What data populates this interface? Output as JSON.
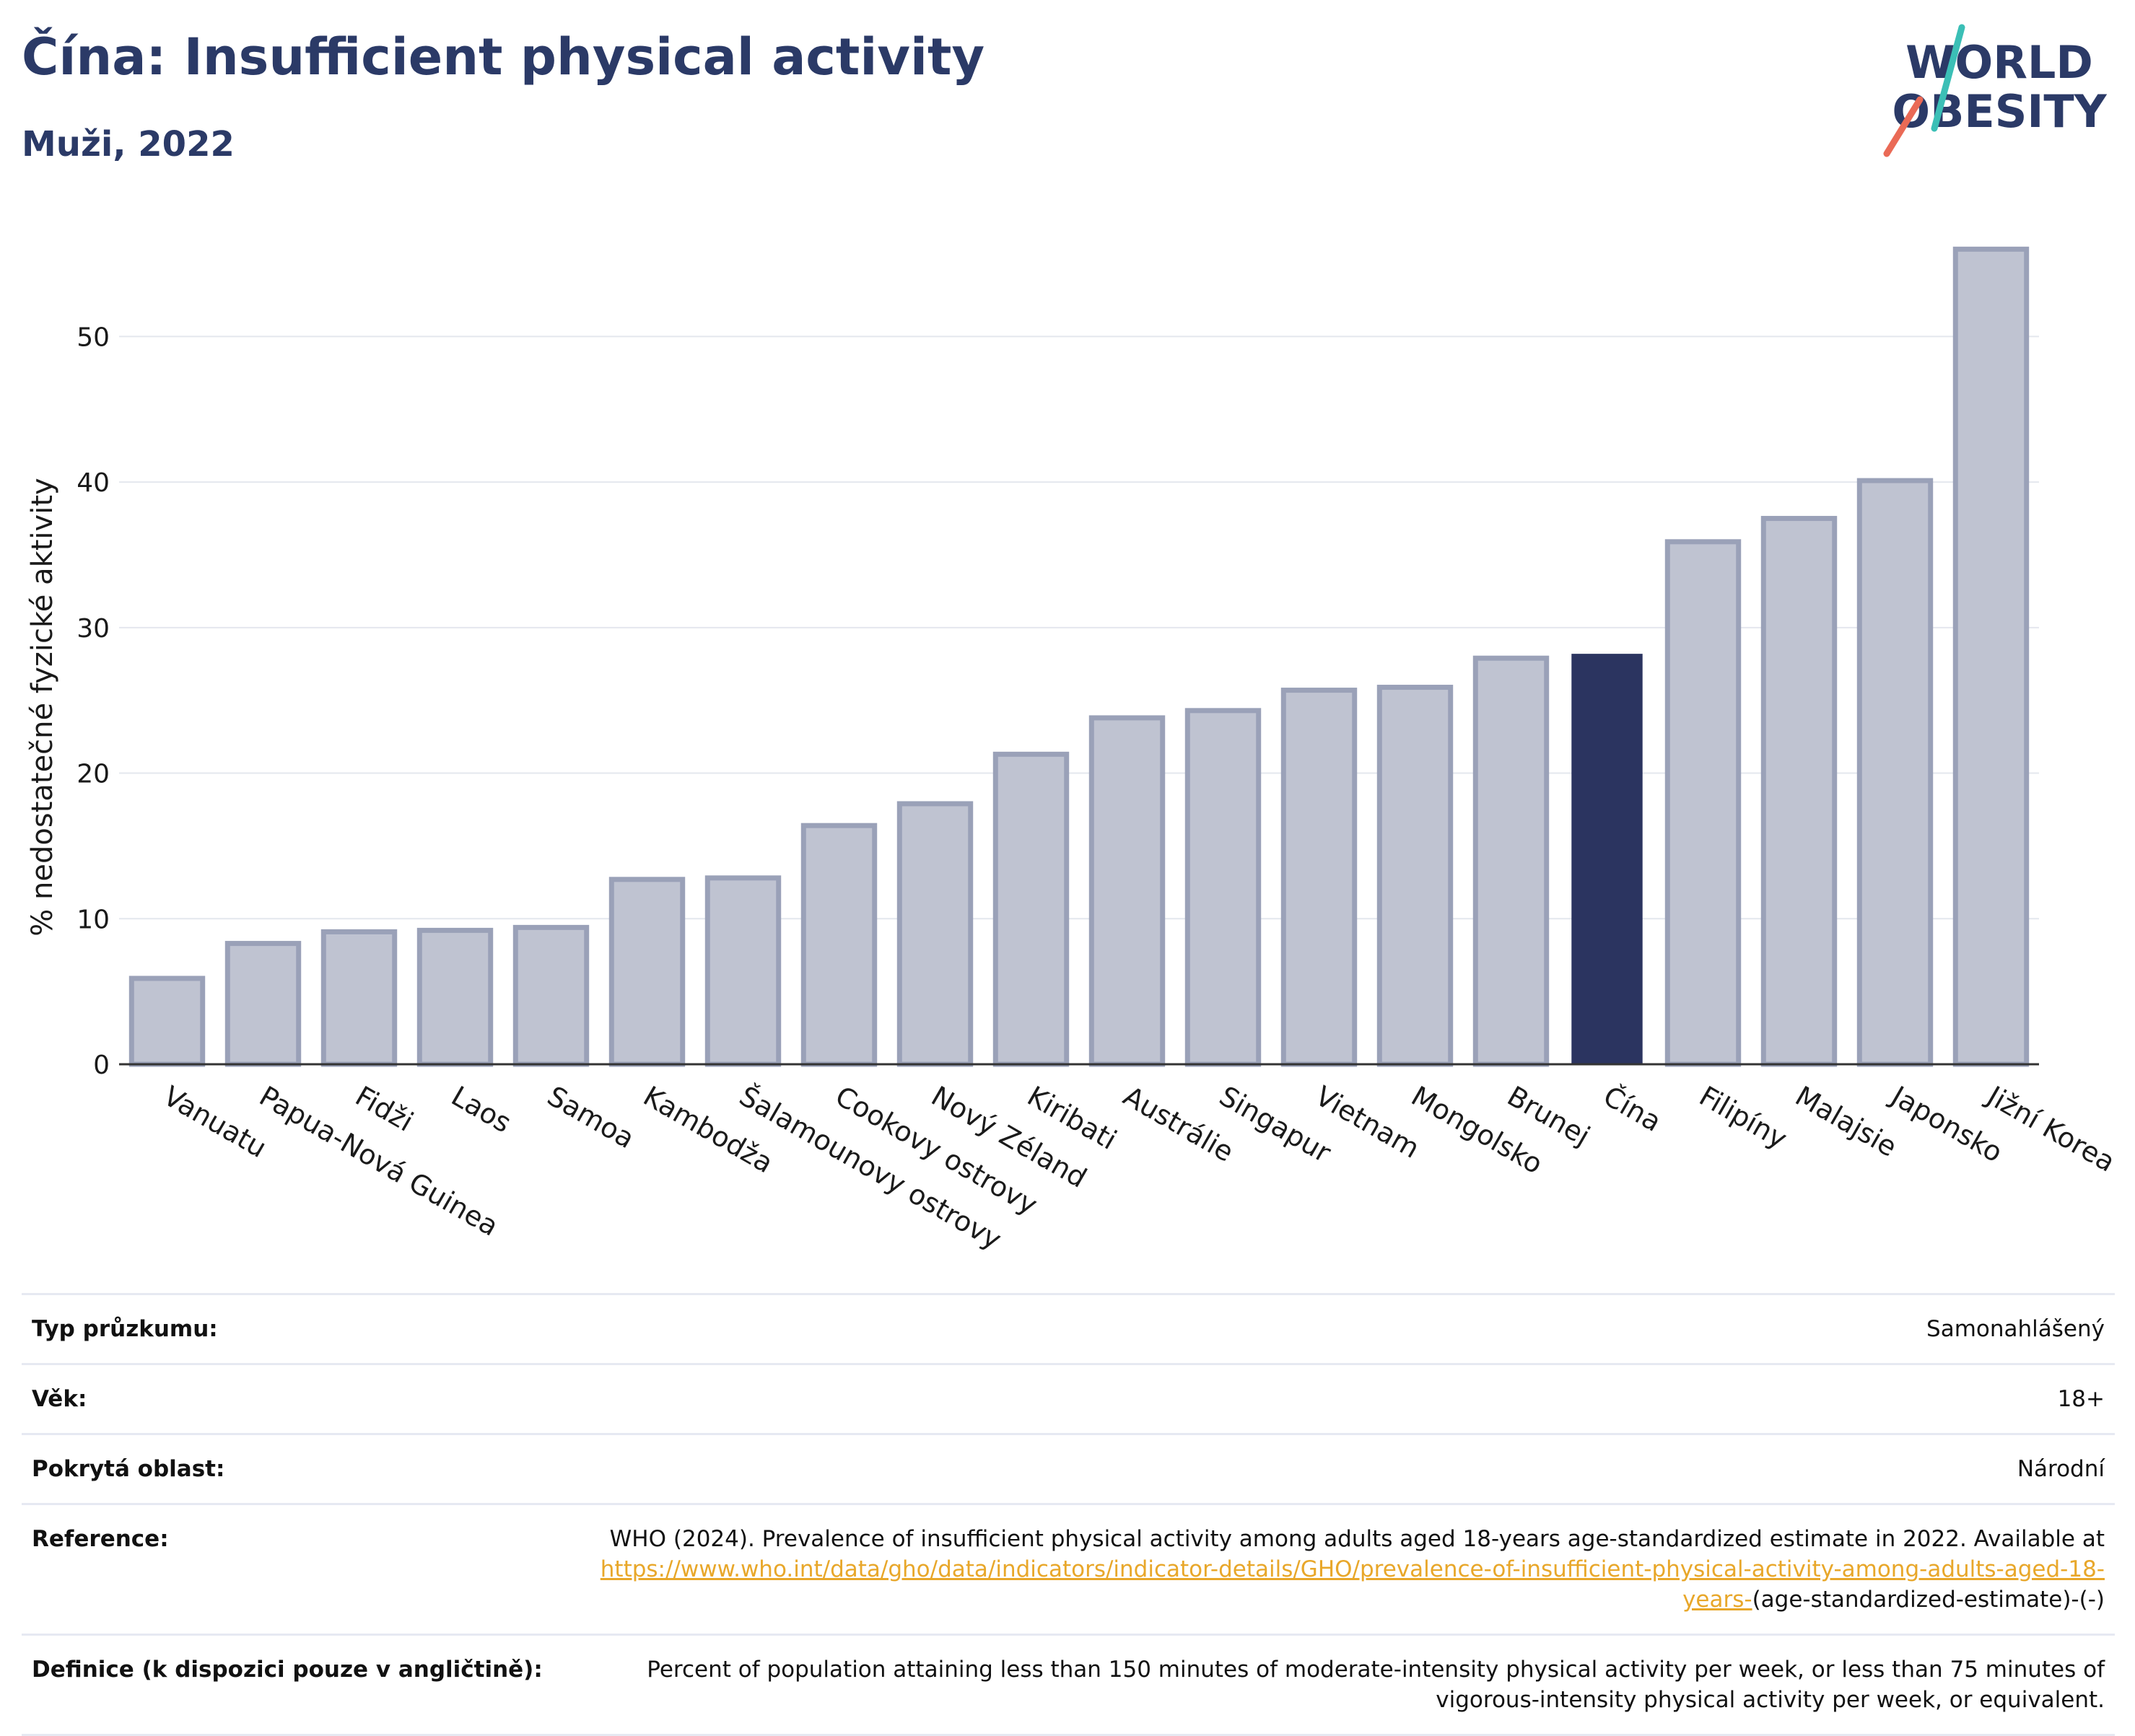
{
  "header": {
    "title": "Čína: Insufficient physical activity",
    "subtitle": "Muži, 2022"
  },
  "logo": {
    "line1": "WORLD",
    "line2": "OBESITY"
  },
  "colors": {
    "highlight": "#2b3460",
    "bar": "#bfc3d1",
    "bar_border": "#9aa1b8",
    "title": "#2b3a67",
    "link": "#e8a72a"
  },
  "chart_data": {
    "type": "bar",
    "ylabel": "% nedostatečné fyzické aktivity",
    "xlabel": "",
    "ylim": [
      0,
      58
    ],
    "yticks": [
      0,
      10,
      20,
      30,
      40,
      50
    ],
    "grid": true,
    "highlight": "Čína",
    "categories": [
      "Vanuatu",
      "Papua-Nová Guinea",
      "Fidži",
      "Laos",
      "Samoa",
      "Kambodža",
      "Šalamounovy ostrovy",
      "Cookovy ostrovy",
      "Nový Zéland",
      "Kiribati",
      "Austrálie",
      "Singapur",
      "Vietnam",
      "Mongolsko",
      "Brunej",
      "Čína",
      "Filipíny",
      "Malajsie",
      "Japonsko",
      "Jižní Korea"
    ],
    "values": [
      5.9,
      8.3,
      9.1,
      9.2,
      9.4,
      12.7,
      12.8,
      16.4,
      17.9,
      21.3,
      23.8,
      24.3,
      25.7,
      25.9,
      27.9,
      28.2,
      35.9,
      37.5,
      40.1,
      56.0
    ]
  },
  "info": [
    {
      "key": "Typ průzkumu:",
      "value": "Samonahlášený"
    },
    {
      "key": "Věk:",
      "value": "18+"
    },
    {
      "key": "Pokrytá oblast:",
      "value": "Národní"
    },
    {
      "key": "Reference:",
      "value": "WHO (2024). Prevalence of insufficient physical activity among adults aged 18-years age-standardized estimate in 2022. Available at",
      "link": "https://www.who.int/data/gho/data/indicators/indicator-details/GHO/prevalence-of-insufficient-physical-activity-among-adults-aged-18-years-",
      "suffix": "(age-standardized-estimate)-(-)"
    },
    {
      "key": "Definice (k dispozici pouze v angličtině):",
      "value": "Percent of population attaining less than 150 minutes of moderate-intensity physical activity per week, or less than 75 minutes of vigorous-intensity physical activity per week, or equivalent."
    }
  ]
}
